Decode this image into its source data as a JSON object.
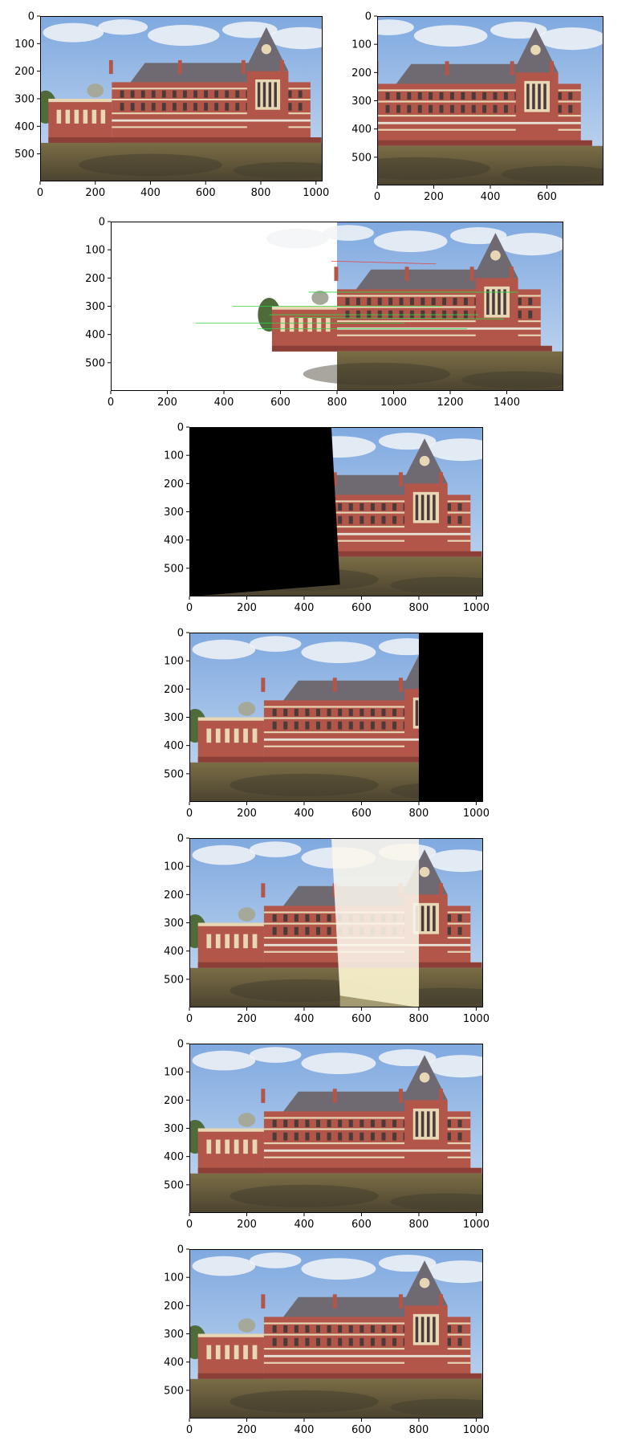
{
  "chart_data": [
    {
      "type": "image",
      "panel": "left-image",
      "xlim": [
        0,
        1024
      ],
      "ylim": [
        600,
        0
      ],
      "xticks": [
        0,
        200,
        400,
        600,
        800,
        1000
      ],
      "yticks": [
        0,
        100,
        200,
        300,
        400,
        500
      ],
      "xtick_labels": [
        "0",
        "200",
        "400",
        "600",
        "800",
        "1000"
      ],
      "ytick_labels": [
        "0",
        "100",
        "200",
        "300",
        "400",
        "500"
      ],
      "grid": false,
      "content": "building-photo-left"
    },
    {
      "type": "image",
      "panel": "right-image",
      "xlim": [
        0,
        800
      ],
      "ylim": [
        600,
        0
      ],
      "xticks": [
        0,
        200,
        400,
        600
      ],
      "yticks": [
        0,
        100,
        200,
        300,
        400,
        500
      ],
      "xtick_labels": [
        "0",
        "200",
        "400",
        "600"
      ],
      "ytick_labels": [
        "0",
        "100",
        "200",
        "300",
        "400",
        "500"
      ],
      "grid": false,
      "content": "building-photo-right"
    },
    {
      "type": "image",
      "panel": "feature-matches",
      "xlim": [
        0,
        1600
      ],
      "ylim": [
        600,
        0
      ],
      "xticks": [
        0,
        200,
        400,
        600,
        800,
        1000,
        1200,
        1400
      ],
      "yticks": [
        0,
        100,
        200,
        300,
        400,
        500
      ],
      "xtick_labels": [
        "0",
        "200",
        "400",
        "600",
        "800",
        "1000",
        "1200",
        "1400"
      ],
      "ytick_labels": [
        "0",
        "100",
        "200",
        "300",
        "400",
        "500"
      ],
      "grid": false,
      "content": "side-by-side-with-match-lines"
    },
    {
      "type": "image",
      "panel": "warped-right",
      "xlim": [
        0,
        1024
      ],
      "ylim": [
        600,
        0
      ],
      "xticks": [
        0,
        200,
        400,
        600,
        800,
        1000
      ],
      "yticks": [
        0,
        100,
        200,
        300,
        400,
        500
      ],
      "xtick_labels": [
        "0",
        "200",
        "400",
        "600",
        "800",
        "1000"
      ],
      "ytick_labels": [
        "0",
        "100",
        "200",
        "300",
        "400",
        "500"
      ],
      "grid": false,
      "content": "black-left-warped-photo-right"
    },
    {
      "type": "image",
      "panel": "padded-left",
      "xlim": [
        0,
        1024
      ],
      "ylim": [
        600,
        0
      ],
      "xticks": [
        0,
        200,
        400,
        600,
        800,
        1000
      ],
      "yticks": [
        0,
        100,
        200,
        300,
        400,
        500
      ],
      "xtick_labels": [
        "0",
        "200",
        "400",
        "600",
        "800",
        "1000"
      ],
      "ytick_labels": [
        "0",
        "100",
        "200",
        "300",
        "400",
        "500"
      ],
      "grid": false,
      "content": "photo-left-black-right"
    },
    {
      "type": "image",
      "panel": "naive-sum",
      "xlim": [
        0,
        1024
      ],
      "ylim": [
        600,
        0
      ],
      "xticks": [
        0,
        200,
        400,
        600,
        800,
        1000
      ],
      "yticks": [
        0,
        100,
        200,
        300,
        400,
        500
      ],
      "xtick_labels": [
        "0",
        "200",
        "400",
        "600",
        "800",
        "1000"
      ],
      "ytick_labels": [
        "0",
        "100",
        "200",
        "300",
        "400",
        "500"
      ],
      "grid": false,
      "content": "overexposed-overlap"
    },
    {
      "type": "image",
      "panel": "stitched",
      "xlim": [
        0,
        1024
      ],
      "ylim": [
        600,
        0
      ],
      "xticks": [
        0,
        200,
        400,
        600,
        800,
        1000
      ],
      "yticks": [
        0,
        100,
        200,
        300,
        400,
        500
      ],
      "xtick_labels": [
        "0",
        "200",
        "400",
        "600",
        "800",
        "1000"
      ],
      "ytick_labels": [
        "0",
        "100",
        "200",
        "300",
        "400",
        "500"
      ],
      "grid": false,
      "content": "panorama"
    },
    {
      "type": "image",
      "panel": "stitched-blended",
      "xlim": [
        0,
        1024
      ],
      "ylim": [
        600,
        0
      ],
      "xticks": [
        0,
        200,
        400,
        600,
        800,
        1000
      ],
      "yticks": [
        0,
        100,
        200,
        300,
        400,
        500
      ],
      "xtick_labels": [
        "0",
        "200",
        "400",
        "600",
        "800",
        "1000"
      ],
      "ytick_labels": [
        "0",
        "100",
        "200",
        "300",
        "400",
        "500"
      ],
      "grid": false,
      "content": "panorama-blended"
    }
  ],
  "colors": {
    "sky": "#8fb5e6",
    "cloud": "#f2f4f7",
    "brick": "#b2564a",
    "roof": "#6f6a72",
    "trim": "#e8d7b5",
    "window": "#4a3a38",
    "grass": "#6f6542",
    "shadow": "#3d3a2a",
    "black": "#000000",
    "overexposed": "#fbf6ea",
    "match_green": "#31d64a",
    "match_red": "#e04a4a"
  }
}
